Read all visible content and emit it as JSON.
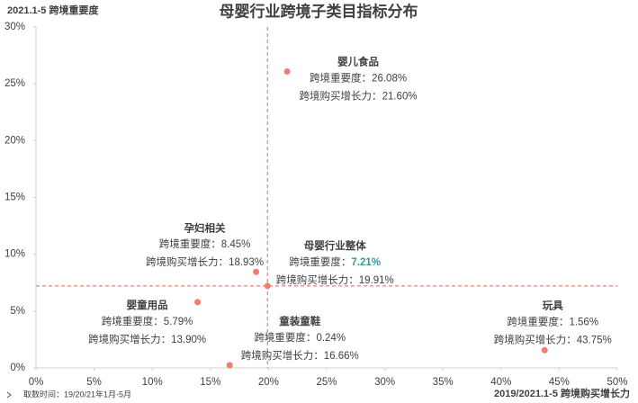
{
  "chart_data": {
    "type": "scatter",
    "title": "母婴行业跨境子类目指标分布",
    "y_label": "2021.1-5 跨境重要度",
    "x_label": "2019/2021.1-5 跨境购买增长力",
    "footnote": "取数时间：19/20/21年1月-5月",
    "importance_prefix": "跨境重要度：",
    "growth_prefix": "跨境购买增长力：",
    "xlim": [
      0,
      50
    ],
    "ylim": [
      0,
      30
    ],
    "xticks": [
      {
        "value": 0,
        "label": "0%"
      },
      {
        "value": 5,
        "label": "5%"
      },
      {
        "value": 10,
        "label": "10%"
      },
      {
        "value": 15,
        "label": "15%"
      },
      {
        "value": 20,
        "label": "20%"
      },
      {
        "value": 25,
        "label": "25%"
      },
      {
        "value": 30,
        "label": "30%"
      },
      {
        "value": 35,
        "label": "35%"
      },
      {
        "value": 40,
        "label": "40%"
      },
      {
        "value": 45,
        "label": "45%"
      },
      {
        "value": 50,
        "label": "50%"
      }
    ],
    "yticks": [
      {
        "value": 0,
        "label": "0%"
      },
      {
        "value": 5,
        "label": "5%"
      },
      {
        "value": 10,
        "label": "10%"
      },
      {
        "value": 15,
        "label": "15%"
      },
      {
        "value": 20,
        "label": "20%"
      },
      {
        "value": 25,
        "label": "25%"
      },
      {
        "value": 30,
        "label": "30%"
      }
    ],
    "series": [
      {
        "color": "#f07c72",
        "names": [
          "婴儿食品",
          "孕妇相关",
          "母婴行业整体",
          "婴童用品",
          "童装童鞋",
          "玩具"
        ],
        "x": [
          21.6,
          18.93,
          19.91,
          13.9,
          16.66,
          43.75
        ],
        "values": [
          26.08,
          8.45,
          7.21,
          5.79,
          0.24,
          1.56
        ],
        "value_labels": [
          "26.08%",
          "8.45%",
          "7.21%",
          "5.79%",
          "0.24%",
          "1.56%"
        ],
        "x_value_labels": [
          "21.60%",
          "18.93%",
          "19.91%",
          "13.90%",
          "16.66%",
          "43.75%"
        ]
      }
    ]
  }
}
